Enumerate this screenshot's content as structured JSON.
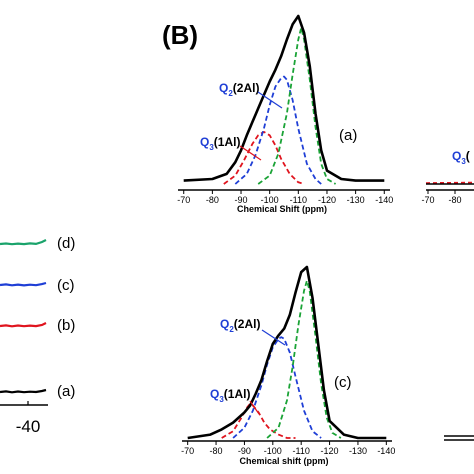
{
  "figure_label": "(B)",
  "left_panel": {
    "traces": [
      {
        "label": "(d)",
        "color": "#1aa36b"
      },
      {
        "label": "(c)",
        "color": "#1f3fd6"
      },
      {
        "label": "(b)",
        "color": "#e0141e"
      },
      {
        "label": "(a)",
        "color": "#000000"
      }
    ],
    "visible_tick": "-40"
  },
  "colors": {
    "total": "#000000",
    "q4": "#1aa336",
    "q2": "#1f3fd6",
    "q3": "#e0141e"
  },
  "chart_data": [
    {
      "type": "line",
      "panel_label": "(a)",
      "xlabel": "Chemical Shift (ppm)",
      "xlim": [
        -68,
        -142
      ],
      "x_ticks": [
        "-70",
        "-80",
        "-90",
        "-100",
        "-110",
        "-120",
        "-130",
        "-140"
      ],
      "annotations": [
        {
          "text": "Q",
          "sub": "2",
          "rest": "(2Al)",
          "color": "#1f3fd6"
        },
        {
          "text": "Q",
          "sub": "3",
          "rest": "(1Al)",
          "color": "#1f3fd6"
        }
      ],
      "series": [
        {
          "role": "total",
          "x": [
            -70,
            -80,
            -85,
            -88,
            -90,
            -92,
            -94,
            -96,
            -98,
            -100,
            -102,
            -104,
            -106,
            -108,
            -110,
            -112,
            -114,
            -116,
            -118,
            -120,
            -125,
            -130,
            -140
          ],
          "y": [
            0.02,
            0.03,
            0.06,
            0.13,
            0.2,
            0.29,
            0.37,
            0.45,
            0.53,
            0.61,
            0.68,
            0.76,
            0.86,
            0.95,
            1.0,
            0.9,
            0.7,
            0.42,
            0.2,
            0.08,
            0.03,
            0.02,
            0.02
          ]
        },
        {
          "role": "q4",
          "x": [
            -96,
            -100,
            -103,
            -106,
            -108,
            -110,
            -111,
            -112,
            -114,
            -116,
            -118,
            -120,
            -123
          ],
          "y": [
            0.0,
            0.05,
            0.18,
            0.42,
            0.65,
            0.86,
            0.93,
            0.86,
            0.62,
            0.34,
            0.12,
            0.03,
            0.0
          ]
        },
        {
          "role": "q2",
          "x": [
            -88,
            -92,
            -95,
            -98,
            -100,
            -102,
            -104,
            -105,
            -106,
            -108,
            -110,
            -113,
            -116,
            -118
          ],
          "y": [
            0.0,
            0.06,
            0.17,
            0.33,
            0.47,
            0.58,
            0.63,
            0.64,
            0.62,
            0.5,
            0.33,
            0.12,
            0.03,
            0.0
          ]
        },
        {
          "role": "q3",
          "x": [
            -84,
            -88,
            -91,
            -94,
            -96,
            -98,
            -100,
            -102,
            -104,
            -107,
            -110,
            -112
          ],
          "y": [
            0.0,
            0.05,
            0.14,
            0.24,
            0.29,
            0.31,
            0.29,
            0.23,
            0.15,
            0.06,
            0.01,
            0.0
          ]
        }
      ]
    },
    {
      "type": "line",
      "panel_label": "(c)",
      "xlabel": "Chemical shift (ppm)",
      "xlim": [
        -68,
        -142
      ],
      "x_ticks": [
        "-70",
        "-80",
        "-90",
        "-100",
        "-110",
        "-120",
        "-130",
        "-140"
      ],
      "annotations": [
        {
          "text": "Q",
          "sub": "2",
          "rest": "(2Al)",
          "color": "#1f3fd6"
        },
        {
          "text": "Q",
          "sub": "3",
          "rest": "(1Al)",
          "color": "#1f3fd6"
        }
      ],
      "series": [
        {
          "role": "total",
          "x": [
            -70,
            -78,
            -82,
            -86,
            -88,
            -90,
            -92,
            -94,
            -96,
            -98,
            -100,
            -102,
            -104,
            -106,
            -108,
            -110,
            -112,
            -114,
            -116,
            -118,
            -120,
            -125,
            -130,
            -140
          ],
          "y": [
            0.0,
            0.02,
            0.05,
            0.09,
            0.12,
            0.15,
            0.19,
            0.26,
            0.34,
            0.45,
            0.55,
            0.6,
            0.64,
            0.72,
            0.85,
            0.97,
            1.0,
            0.82,
            0.55,
            0.28,
            0.1,
            0.02,
            0.0,
            0.0
          ]
        },
        {
          "role": "q4",
          "x": [
            -98,
            -102,
            -105,
            -107,
            -109,
            -111,
            -112,
            -113,
            -115,
            -117,
            -119,
            -121,
            -124
          ],
          "y": [
            0.0,
            0.06,
            0.22,
            0.42,
            0.66,
            0.86,
            0.92,
            0.86,
            0.6,
            0.32,
            0.12,
            0.03,
            0.0
          ]
        },
        {
          "role": "q2",
          "x": [
            -86,
            -90,
            -93,
            -96,
            -98,
            -100,
            -102,
            -103,
            -104,
            -106,
            -108,
            -111,
            -114,
            -117
          ],
          "y": [
            0.0,
            0.06,
            0.16,
            0.31,
            0.43,
            0.53,
            0.58,
            0.59,
            0.58,
            0.5,
            0.36,
            0.16,
            0.04,
            0.0
          ]
        },
        {
          "role": "q3",
          "x": [
            -82,
            -86,
            -89,
            -91,
            -92,
            -93,
            -95,
            -97,
            -99,
            -102,
            -105,
            -108
          ],
          "y": [
            0.0,
            0.04,
            0.12,
            0.18,
            0.2,
            0.19,
            0.15,
            0.09,
            0.05,
            0.02,
            0.0,
            0.0
          ]
        }
      ]
    }
  ]
}
